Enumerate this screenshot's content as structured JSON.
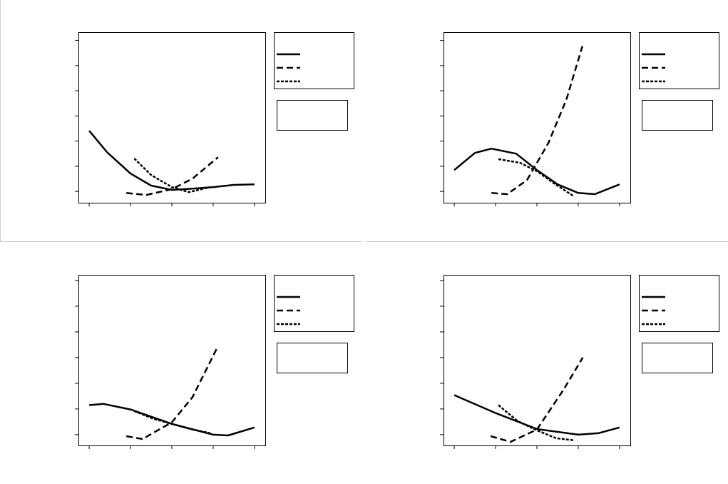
{
  "chart_data": [
    {
      "type": "line",
      "xlim": [
        -0.26,
        4.26
      ],
      "ylim": [
        -0.45,
        6.33
      ],
      "xticks": [
        0,
        1,
        2,
        3,
        4
      ],
      "yticks": [
        0,
        1,
        2,
        3,
        4,
        5,
        6
      ],
      "series": [
        {
          "color": "#000000",
          "line_style": "solid",
          "x": [
            0,
            0.43,
            1,
            1.5,
            2,
            2.5,
            3,
            3.5,
            4
          ],
          "values": [
            2.41,
            1.56,
            0.71,
            0.23,
            0.06,
            0.11,
            0.17,
            0.26,
            0.28
          ]
        },
        {
          "color": "#000000",
          "line_style": "dashed",
          "x": [
            0.9,
            1.38,
            2,
            2.5,
            3.12
          ],
          "values": [
            -0.06,
            -0.14,
            0.09,
            0.51,
            1.36
          ]
        },
        {
          "color": "#000000",
          "line_style": "dotted",
          "x": [
            1.09,
            1.5,
            2,
            2.41,
            2.93
          ],
          "values": [
            1.31,
            0.65,
            0.17,
            -0.03,
            0.17
          ]
        }
      ]
    },
    {
      "type": "line",
      "xlim": [
        -0.26,
        4.26
      ],
      "ylim": [
        -0.45,
        6.33
      ],
      "xticks": [
        0,
        1,
        2,
        3,
        4
      ],
      "yticks": [
        0,
        1,
        2,
        3,
        4,
        5,
        6
      ],
      "series": [
        {
          "color": "#000000",
          "line_style": "solid",
          "x": [
            0,
            0.5,
            0.9,
            1.5,
            2,
            2.5,
            3,
            3.4,
            4
          ],
          "values": [
            0.85,
            1.53,
            1.7,
            1.5,
            0.85,
            0.28,
            -0.06,
            -0.11,
            0.28
          ]
        },
        {
          "color": "#000000",
          "line_style": "dashed",
          "x": [
            0.9,
            1.28,
            1.76,
            2.28,
            2.71,
            3.1
          ],
          "values": [
            -0.06,
            -0.11,
            0.45,
            1.93,
            3.64,
            5.77
          ]
        },
        {
          "color": "#000000",
          "line_style": "dotted",
          "x": [
            1.07,
            1.59,
            2,
            2.45,
            2.9
          ],
          "values": [
            1.28,
            1.14,
            0.8,
            0.28,
            -0.2
          ]
        }
      ]
    },
    {
      "type": "line",
      "xlim": [
        -0.26,
        4.26
      ],
      "ylim": [
        -0.42,
        6.22
      ],
      "xticks": [
        0,
        1,
        2,
        3,
        4
      ],
      "yticks": [
        0,
        1,
        2,
        3,
        4,
        5,
        6
      ],
      "series": [
        {
          "color": "#000000",
          "line_style": "solid",
          "x": [
            0,
            0.34,
            1,
            2,
            3,
            3.36,
            4
          ],
          "values": [
            1.15,
            1.2,
            0.98,
            0.42,
            0,
            -0.03,
            0.28
          ]
        },
        {
          "color": "#000000",
          "line_style": "dashed",
          "x": [
            0.9,
            1.29,
            2,
            2.5,
            3.09
          ],
          "values": [
            -0.06,
            -0.17,
            0.48,
            1.46,
            3.36
          ]
        },
        {
          "color": "#000000",
          "line_style": "dotted",
          "x": [
            1.09,
            1.55,
            2,
            2.5,
            2.93
          ],
          "values": [
            0.92,
            0.62,
            0.42,
            0.2,
            0.06
          ]
        }
      ]
    },
    {
      "type": "line",
      "xlim": [
        -0.26,
        4.26
      ],
      "ylim": [
        -0.42,
        6.22
      ],
      "xticks": [
        0,
        1,
        2,
        3,
        4
      ],
      "yticks": [
        0,
        1,
        2,
        3,
        4,
        5,
        6
      ],
      "series": [
        {
          "color": "#000000",
          "line_style": "solid",
          "x": [
            0,
            1,
            2,
            3,
            3.5,
            4
          ],
          "values": [
            1.54,
            0.84,
            0.22,
            0,
            0.06,
            0.28
          ]
        },
        {
          "color": "#000000",
          "line_style": "dashed",
          "x": [
            0.88,
            1.36,
            2,
            2.64,
            3.11
          ],
          "values": [
            -0.06,
            -0.28,
            0.2,
            1.74,
            3.0
          ]
        },
        {
          "color": "#000000",
          "line_style": "dotted",
          "x": [
            1.07,
            1.53,
            2,
            2.47,
            2.9
          ],
          "values": [
            1.15,
            0.53,
            0.17,
            -0.14,
            -0.22
          ]
        }
      ]
    }
  ]
}
